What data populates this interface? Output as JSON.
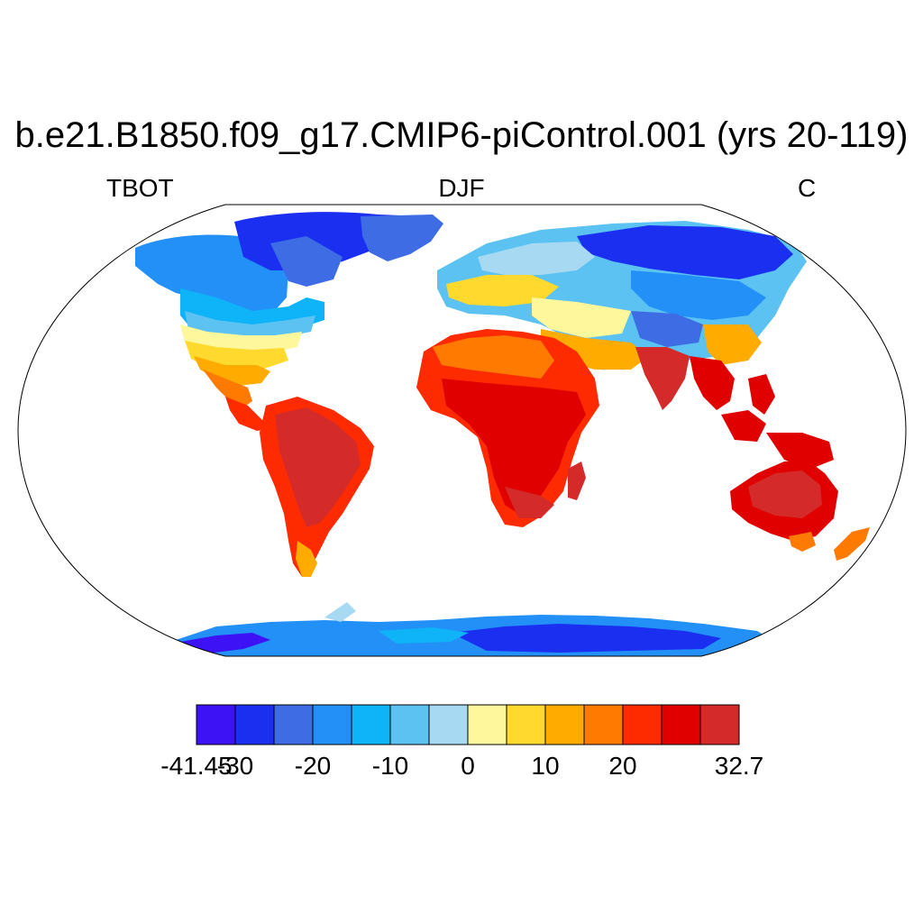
{
  "title": "b.e21.B1850.f09_g17.CMIP6-piControl.001 (yrs 20-119)",
  "variable": "TBOT",
  "season": "DJF",
  "units": "C",
  "colorbar": {
    "colors": [
      "#3d12f5",
      "#1a2ff0",
      "#3e6ce4",
      "#2390f8",
      "#0fb3f7",
      "#5bc2f2",
      "#a8d9f2",
      "#fff79c",
      "#ffd92e",
      "#ffab00",
      "#ff7a00",
      "#ff2b00",
      "#e00000",
      "#d42a2a"
    ],
    "labels": [
      {
        "text": "-41.45",
        "index": 0
      },
      {
        "text": "-30",
        "index": 1
      },
      {
        "text": "-20",
        "index": 3
      },
      {
        "text": "-10",
        "index": 5
      },
      {
        "text": "0",
        "index": 7
      },
      {
        "text": "10",
        "index": 9
      },
      {
        "text": "20",
        "index": 11
      },
      {
        "text": "32.7",
        "index": 14
      }
    ]
  },
  "map": {
    "projection": "Robinson",
    "ocean_color": "#ffffff",
    "coastline_color": "#000000"
  }
}
